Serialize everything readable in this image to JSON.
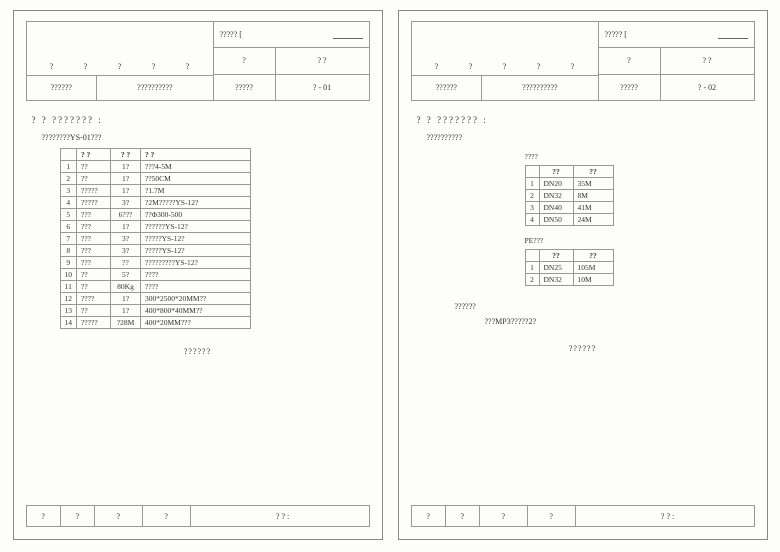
{
  "page_left": {
    "header": {
      "top_qs": [
        "?",
        "?",
        "?",
        "?",
        "?"
      ],
      "company": "??????",
      "project": "??????????",
      "right_title": "????? [",
      "right_r2a": "?",
      "right_r2b": "?          ?",
      "right_r3a": "?????",
      "right_r3b": "? - 01"
    },
    "section": "?   ?  ???????  :",
    "subtitle": "????????YS-01???",
    "table_headers": [
      "",
      "?  ?",
      "?  ?",
      "?     ?"
    ],
    "rows": [
      [
        "1",
        "??",
        "1?",
        "???4-5M"
      ],
      [
        "2",
        "??",
        "1?",
        "??50CM"
      ],
      [
        "3",
        "?????",
        "1?",
        "?1.7M"
      ],
      [
        "4",
        "?????",
        "3?",
        "?2M?????YS-12?"
      ],
      [
        "5",
        "???",
        "6???",
        "??Φ300-500"
      ],
      [
        "6",
        "???",
        "1?",
        "??????YS-12?"
      ],
      [
        "7",
        "???",
        "3?",
        "?????YS-12?"
      ],
      [
        "8",
        "???",
        "3?",
        "?????YS-12?"
      ],
      [
        "9",
        "???",
        "??",
        "?????????YS-12?"
      ],
      [
        "10",
        "??",
        "5?",
        "????"
      ],
      [
        "11",
        "??",
        "80Kg",
        "????"
      ],
      [
        "12",
        "????",
        "1?",
        "300*2500*20MM??"
      ],
      [
        "13",
        "??",
        "1?",
        "400*800*40MM??"
      ],
      [
        "14",
        "?????",
        "?28M",
        "400*20MM???"
      ]
    ],
    "note": "??????",
    "footer": [
      "?",
      "?",
      "?",
      "?",
      "?  ? :"
    ]
  },
  "page_right": {
    "header": {
      "top_qs": [
        "?",
        "?",
        "?",
        "?",
        "?"
      ],
      "company": "??????",
      "project": "??????????",
      "right_title": "????? [",
      "right_r2a": "?",
      "right_r2b": "?          ?",
      "right_r3a": "?????",
      "right_r3b": "? - 02"
    },
    "section": "?   ?  ???????  :",
    "subtitle": "??????????",
    "label1": "????",
    "table1_h": [
      "",
      "??",
      "??"
    ],
    "table1": [
      [
        "1",
        "DN20",
        "35M"
      ],
      [
        "2",
        "DN32",
        "8M"
      ],
      [
        "3",
        "DN40",
        "41M"
      ],
      [
        "4",
        "DN50",
        "24M"
      ]
    ],
    "label2": "PE???",
    "table2_h": [
      "",
      "??",
      "??"
    ],
    "table2": [
      [
        "1",
        "DN25",
        "105M"
      ],
      [
        "2",
        "DN32",
        "10M"
      ]
    ],
    "sub2": "??????",
    "sub3": "???MP3?????2?",
    "note": "??????",
    "footer": [
      "?",
      "?",
      "?",
      "?",
      "?  ? :"
    ]
  }
}
